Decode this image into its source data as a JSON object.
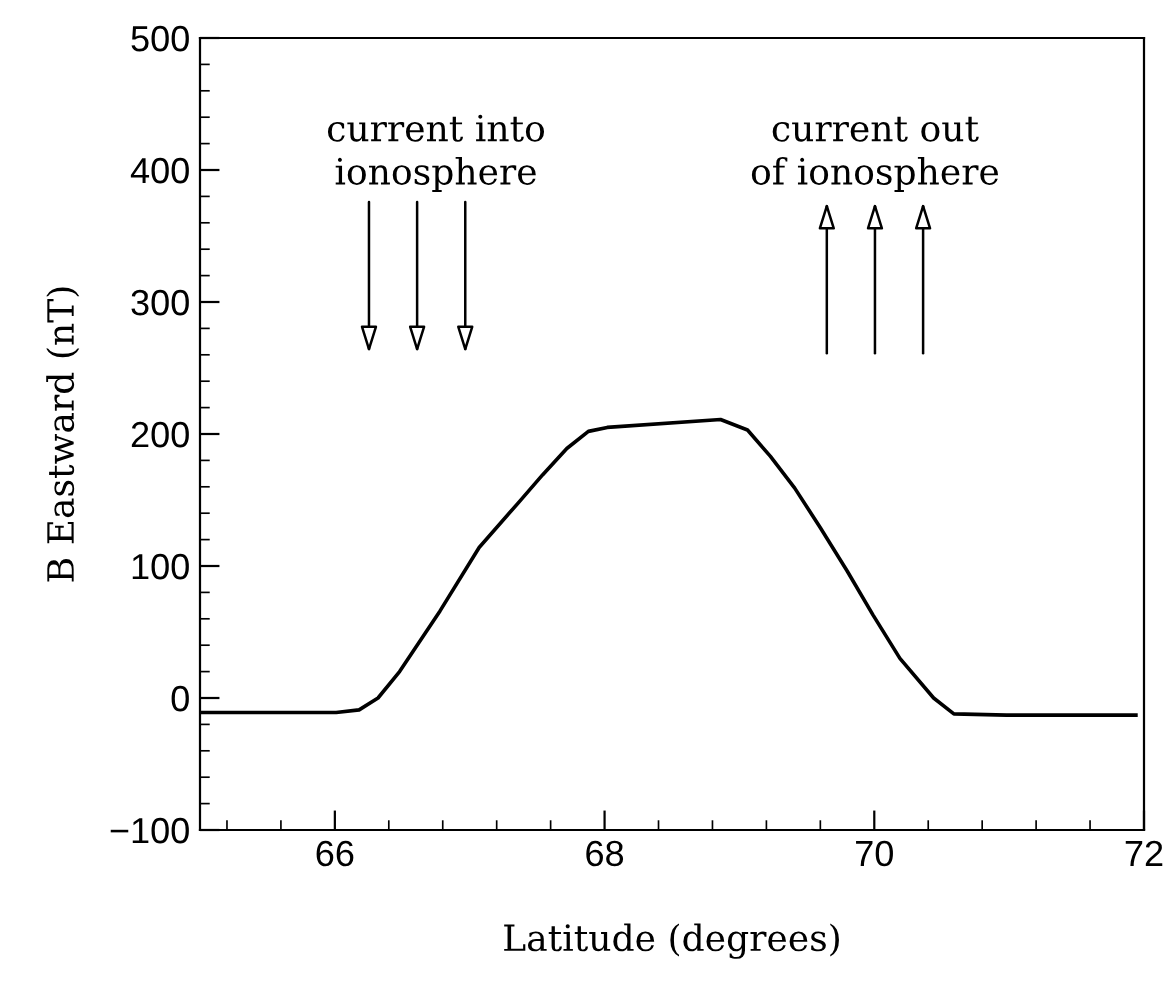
{
  "chart_data": {
    "type": "line",
    "xlabel": "Latitude (degrees)",
    "ylabel": "B Eastward (nT)",
    "x": [
      65.0,
      66.01,
      66.18,
      66.32,
      66.48,
      66.78,
      67.07,
      67.37,
      67.54,
      67.72,
      67.88,
      68.02,
      68.86,
      69.06,
      69.23,
      69.41,
      69.6,
      69.8,
      69.99,
      70.19,
      70.44,
      70.59,
      70.98,
      71.94
    ],
    "series": [
      {
        "color": "#000000",
        "values": [
          -11,
          -11,
          -9,
          0,
          20,
          66,
          114,
          149,
          169,
          189,
          202,
          205,
          211,
          203,
          183,
          159,
          129,
          96,
          63,
          30,
          0,
          -12,
          -13,
          -13
        ]
      }
    ],
    "xlim": [
      65,
      72
    ],
    "xticks": [
      {
        "value": 66,
        "label": "66"
      },
      {
        "value": 68,
        "label": "68"
      },
      {
        "value": 70,
        "label": "70"
      },
      {
        "value": 72,
        "label": "72"
      }
    ],
    "ylim": [
      -100,
      500
    ],
    "yticks": [
      {
        "value": -100,
        "label": "−100"
      },
      {
        "value": 0,
        "label": "0"
      },
      {
        "value": 100,
        "label": "100"
      },
      {
        "value": 200,
        "label": "200"
      },
      {
        "value": 300,
        "label": "300"
      },
      {
        "value": 400,
        "label": "400"
      },
      {
        "value": 500,
        "label": "500"
      }
    ],
    "annotations": [
      "current into\nionosphere",
      "current out\nof ionosphere"
    ],
    "grid": false,
    "legend": false,
    "marker": "none",
    "line_style": "solid"
  }
}
